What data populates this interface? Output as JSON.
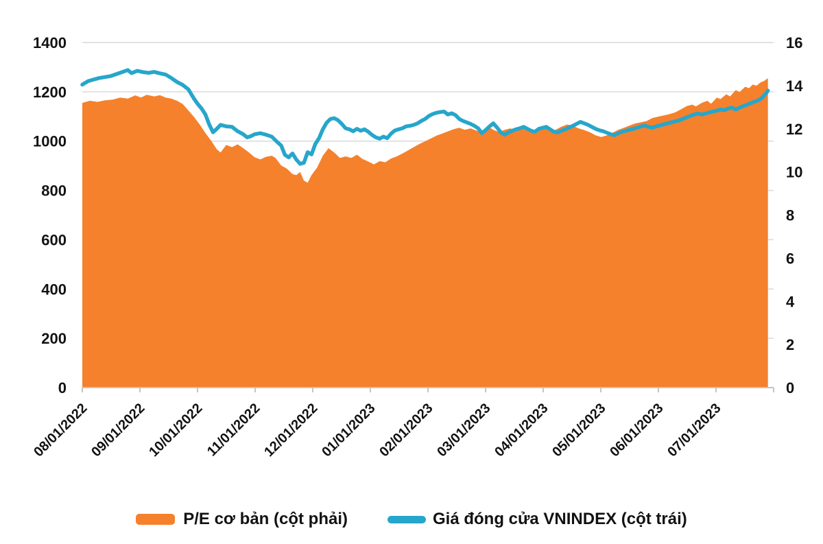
{
  "page": {
    "background": "#ffffff"
  },
  "legend": {
    "items": [
      {
        "label": "P/E cơ bản (cột phải)",
        "color": "#F5812C",
        "swatch": "area"
      },
      {
        "label": "Giá đóng cửa VNINDEX (cột trái)",
        "color": "#27A6CB",
        "swatch": "line"
      }
    ]
  },
  "chart_data": {
    "type": "combo-area-line-dual-axis",
    "title": "",
    "grid": true,
    "legend_position": "bottom",
    "x_axis": {
      "domain_days": [
        0,
        365
      ],
      "tick_labels": [
        "08/01/2022",
        "09/01/2022",
        "10/01/2022",
        "11/01/2022",
        "12/01/2022",
        "01/01/2023",
        "02/01/2023",
        "03/01/2023",
        "04/01/2023",
        "05/01/2023",
        "06/01/2023",
        "07/01/2023"
      ]
    },
    "left_axis": {
      "min": 0,
      "max": 1400,
      "step": 200,
      "tick_labels": [
        "1400",
        "1200",
        "1000",
        "800",
        "600",
        "400",
        "200",
        "0"
      ]
    },
    "right_axis": {
      "min": 0,
      "max": 16,
      "step": 2,
      "tick_labels": [
        "16",
        "14",
        "12",
        "10",
        "8",
        "6",
        "4",
        "2",
        "0"
      ]
    },
    "gridline_color": "#d9d9d9",
    "axis_line_color": "#c4c4c4",
    "series": [
      {
        "name": "P/E cơ bản (cột phải)",
        "type": "area",
        "axis": "right",
        "color": "#F5812C",
        "points": [
          [
            0,
            13.2
          ],
          [
            4,
            13.3
          ],
          [
            8,
            13.25
          ],
          [
            12,
            13.32
          ],
          [
            16,
            13.35
          ],
          [
            20,
            13.45
          ],
          [
            24,
            13.4
          ],
          [
            28,
            13.55
          ],
          [
            31,
            13.45
          ],
          [
            34,
            13.58
          ],
          [
            38,
            13.5
          ],
          [
            41,
            13.56
          ],
          [
            44,
            13.45
          ],
          [
            47,
            13.4
          ],
          [
            50,
            13.3
          ],
          [
            53,
            13.15
          ],
          [
            56,
            12.85
          ],
          [
            59,
            12.55
          ],
          [
            62,
            12.2
          ],
          [
            65,
            11.8
          ],
          [
            68,
            11.45
          ],
          [
            71,
            11.05
          ],
          [
            73,
            10.9
          ],
          [
            76,
            11.25
          ],
          [
            79,
            11.15
          ],
          [
            82,
            11.28
          ],
          [
            85,
            11.1
          ],
          [
            88,
            10.9
          ],
          [
            91,
            10.68
          ],
          [
            94,
            10.58
          ],
          [
            97,
            10.7
          ],
          [
            100,
            10.75
          ],
          [
            102,
            10.65
          ],
          [
            105,
            10.3
          ],
          [
            108,
            10.15
          ],
          [
            111,
            9.9
          ],
          [
            113,
            9.85
          ],
          [
            115,
            10.0
          ],
          [
            117,
            9.6
          ],
          [
            119,
            9.5
          ],
          [
            121,
            9.85
          ],
          [
            124,
            10.2
          ],
          [
            127,
            10.75
          ],
          [
            130,
            11.1
          ],
          [
            133,
            10.9
          ],
          [
            136,
            10.65
          ],
          [
            139,
            10.72
          ],
          [
            142,
            10.65
          ],
          [
            145,
            10.8
          ],
          [
            148,
            10.6
          ],
          [
            151,
            10.48
          ],
          [
            154,
            10.35
          ],
          [
            157,
            10.5
          ],
          [
            160,
            10.45
          ],
          [
            163,
            10.62
          ],
          [
            166,
            10.72
          ],
          [
            169,
            10.85
          ],
          [
            172,
            11.0
          ],
          [
            175,
            11.15
          ],
          [
            178,
            11.3
          ],
          [
            181,
            11.42
          ],
          [
            184,
            11.55
          ],
          [
            187,
            11.68
          ],
          [
            190,
            11.78
          ],
          [
            193,
            11.88
          ],
          [
            196,
            11.98
          ],
          [
            199,
            12.05
          ],
          [
            202,
            11.95
          ],
          [
            205,
            12.02
          ],
          [
            208,
            11.92
          ],
          [
            211,
            11.85
          ],
          [
            214,
            12.12
          ],
          [
            217,
            11.95
          ],
          [
            220,
            11.85
          ],
          [
            223,
            11.95
          ],
          [
            226,
            12.02
          ],
          [
            229,
            11.92
          ],
          [
            232,
            11.98
          ],
          [
            235,
            12.03
          ],
          [
            238,
            11.93
          ],
          [
            241,
            12.0
          ],
          [
            244,
            12.06
          ],
          [
            247,
            11.9
          ],
          [
            250,
            11.96
          ],
          [
            253,
            12.1
          ],
          [
            256,
            12.2
          ],
          [
            259,
            12.14
          ],
          [
            262,
            12.02
          ],
          [
            265,
            11.94
          ],
          [
            268,
            11.84
          ],
          [
            271,
            11.7
          ],
          [
            274,
            11.62
          ],
          [
            277,
            11.7
          ],
          [
            280,
            11.82
          ],
          [
            283,
            11.95
          ],
          [
            286,
            12.05
          ],
          [
            289,
            12.15
          ],
          [
            292,
            12.25
          ],
          [
            295,
            12.3
          ],
          [
            298,
            12.36
          ],
          [
            301,
            12.5
          ],
          [
            304,
            12.56
          ],
          [
            307,
            12.62
          ],
          [
            310,
            12.68
          ],
          [
            313,
            12.76
          ],
          [
            316,
            12.9
          ],
          [
            319,
            13.05
          ],
          [
            322,
            13.12
          ],
          [
            324,
            13.04
          ],
          [
            327,
            13.2
          ],
          [
            330,
            13.3
          ],
          [
            332,
            13.16
          ],
          [
            335,
            13.45
          ],
          [
            337,
            13.38
          ],
          [
            340,
            13.6
          ],
          [
            342,
            13.5
          ],
          [
            345,
            13.8
          ],
          [
            347,
            13.7
          ],
          [
            350,
            13.95
          ],
          [
            352,
            13.88
          ],
          [
            354,
            14.05
          ],
          [
            356,
            14.0
          ],
          [
            358,
            14.15
          ],
          [
            360,
            14.22
          ],
          [
            362,
            14.35
          ]
        ]
      },
      {
        "name": "Giá đóng cửa VNINDEX (cột trái)",
        "type": "line",
        "axis": "left",
        "color": "#27A6CB",
        "points": [
          [
            0,
            1229
          ],
          [
            3,
            1243
          ],
          [
            6,
            1250
          ],
          [
            9,
            1256
          ],
          [
            12,
            1260
          ],
          [
            15,
            1264
          ],
          [
            18,
            1272
          ],
          [
            21,
            1280
          ],
          [
            24,
            1288
          ],
          [
            26,
            1276
          ],
          [
            29,
            1285
          ],
          [
            32,
            1280
          ],
          [
            35,
            1277
          ],
          [
            38,
            1281
          ],
          [
            41,
            1275
          ],
          [
            44,
            1270
          ],
          [
            47,
            1256
          ],
          [
            50,
            1240
          ],
          [
            53,
            1228
          ],
          [
            56,
            1210
          ],
          [
            59,
            1172
          ],
          [
            61,
            1150
          ],
          [
            63,
            1132
          ],
          [
            65,
            1108
          ],
          [
            67,
            1068
          ],
          [
            69,
            1036
          ],
          [
            71,
            1050
          ],
          [
            73,
            1066
          ],
          [
            76,
            1060
          ],
          [
            79,
            1058
          ],
          [
            82,
            1040
          ],
          [
            85,
            1028
          ],
          [
            87,
            1015
          ],
          [
            89,
            1020
          ],
          [
            91,
            1028
          ],
          [
            94,
            1032
          ],
          [
            97,
            1026
          ],
          [
            100,
            1018
          ],
          [
            103,
            996
          ],
          [
            105,
            982
          ],
          [
            107,
            944
          ],
          [
            109,
            934
          ],
          [
            111,
            950
          ],
          [
            113,
            925
          ],
          [
            115,
            908
          ],
          [
            117,
            912
          ],
          [
            119,
            955
          ],
          [
            121,
            946
          ],
          [
            123,
            988
          ],
          [
            125,
            1012
          ],
          [
            127,
            1048
          ],
          [
            129,
            1075
          ],
          [
            131,
            1090
          ],
          [
            133,
            1093
          ],
          [
            135,
            1085
          ],
          [
            137,
            1070
          ],
          [
            139,
            1052
          ],
          [
            141,
            1048
          ],
          [
            143,
            1040
          ],
          [
            145,
            1050
          ],
          [
            147,
            1042
          ],
          [
            149,
            1048
          ],
          [
            151,
            1038
          ],
          [
            153,
            1025
          ],
          [
            155,
            1015
          ],
          [
            157,
            1010
          ],
          [
            159,
            1018
          ],
          [
            161,
            1012
          ],
          [
            163,
            1030
          ],
          [
            165,
            1043
          ],
          [
            167,
            1048
          ],
          [
            169,
            1052
          ],
          [
            171,
            1060
          ],
          [
            173,
            1062
          ],
          [
            175,
            1066
          ],
          [
            177,
            1072
          ],
          [
            179,
            1082
          ],
          [
            181,
            1090
          ],
          [
            183,
            1102
          ],
          [
            185,
            1110
          ],
          [
            187,
            1115
          ],
          [
            189,
            1118
          ],
          [
            191,
            1120
          ],
          [
            193,
            1108
          ],
          [
            195,
            1113
          ],
          [
            197,
            1106
          ],
          [
            199,
            1090
          ],
          [
            201,
            1082
          ],
          [
            203,
            1076
          ],
          [
            205,
            1070
          ],
          [
            207,
            1062
          ],
          [
            209,
            1052
          ],
          [
            211,
            1032
          ],
          [
            213,
            1045
          ],
          [
            215,
            1060
          ],
          [
            217,
            1072
          ],
          [
            219,
            1055
          ],
          [
            221,
            1035
          ],
          [
            223,
            1026
          ],
          [
            225,
            1035
          ],
          [
            227,
            1042
          ],
          [
            229,
            1048
          ],
          [
            231,
            1052
          ],
          [
            233,
            1058
          ],
          [
            235,
            1050
          ],
          [
            237,
            1042
          ],
          [
            239,
            1038
          ],
          [
            241,
            1050
          ],
          [
            243,
            1054
          ],
          [
            245,
            1058
          ],
          [
            247,
            1048
          ],
          [
            249,
            1038
          ],
          [
            251,
            1035
          ],
          [
            253,
            1042
          ],
          [
            255,
            1048
          ],
          [
            257,
            1055
          ],
          [
            259,
            1062
          ],
          [
            261,
            1070
          ],
          [
            263,
            1078
          ],
          [
            265,
            1072
          ],
          [
            267,
            1066
          ],
          [
            269,
            1058
          ],
          [
            271,
            1050
          ],
          [
            273,
            1044
          ],
          [
            275,
            1040
          ],
          [
            277,
            1034
          ],
          [
            279,
            1028
          ],
          [
            281,
            1024
          ],
          [
            283,
            1032
          ],
          [
            285,
            1038
          ],
          [
            287,
            1042
          ],
          [
            289,
            1046
          ],
          [
            291,
            1050
          ],
          [
            293,
            1055
          ],
          [
            295,
            1060
          ],
          [
            297,
            1063
          ],
          [
            299,
            1058
          ],
          [
            301,
            1055
          ],
          [
            303,
            1060
          ],
          [
            305,
            1064
          ],
          [
            307,
            1068
          ],
          [
            309,
            1072
          ],
          [
            311,
            1076
          ],
          [
            313,
            1080
          ],
          [
            315,
            1084
          ],
          [
            317,
            1090
          ],
          [
            319,
            1096
          ],
          [
            321,
            1102
          ],
          [
            323,
            1108
          ],
          [
            325,
            1112
          ],
          [
            327,
            1108
          ],
          [
            329,
            1112
          ],
          [
            331,
            1116
          ],
          [
            333,
            1120
          ],
          [
            335,
            1124
          ],
          [
            337,
            1128
          ],
          [
            339,
            1125
          ],
          [
            341,
            1132
          ],
          [
            343,
            1136
          ],
          [
            345,
            1128
          ],
          [
            347,
            1136
          ],
          [
            349,
            1142
          ],
          [
            351,
            1148
          ],
          [
            353,
            1154
          ],
          [
            355,
            1160
          ],
          [
            357,
            1166
          ],
          [
            359,
            1176
          ],
          [
            360,
            1186
          ],
          [
            361,
            1194
          ],
          [
            362,
            1205
          ]
        ]
      }
    ]
  }
}
